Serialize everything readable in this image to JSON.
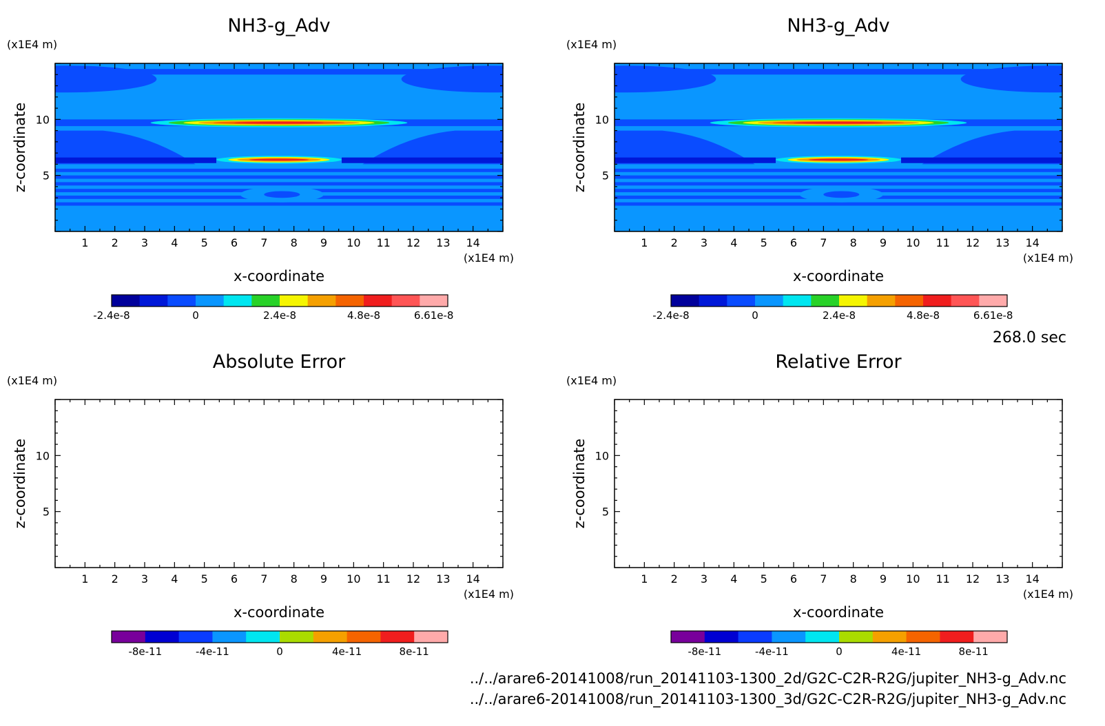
{
  "time_label": "268.0 sec",
  "file_paths": [
    "../../arare6-20141008/run_20141103-1300_2d/G2C-C2R-R2G/jupiter_NH3-g_Adv.nc",
    "../../arare6-20141008/run_20141103-1300_3d/G2C-C2R-R2G/jupiter_NH3-g_Adv.nc"
  ],
  "colors": {
    "background_field": "#0a96ff",
    "field_palette": [
      "#00009b",
      "#0018d8",
      "#0a4cff",
      "#0a96ff",
      "#00e6f0",
      "#28d228",
      "#f5f500",
      "#f5a000",
      "#f56400",
      "#f01e1e",
      "#ff5555",
      "#ffaaaa"
    ],
    "error_palette": [
      "#78009b",
      "#0000d2",
      "#0a3cff",
      "#0a96ff",
      "#00e6f0",
      "#aadc00",
      "#f5a000",
      "#f56400",
      "#f01e1e",
      "#ffaaaa"
    ]
  },
  "chart_data": [
    {
      "type": "heatmap",
      "title": "NH3-g_Adv",
      "xlabel": "x-coordinate",
      "ylabel": "z-coordinate",
      "x_unit": "(x1E4 m)",
      "y_unit": "(x1E4 m)",
      "xlim": [
        0,
        15
      ],
      "ylim": [
        0,
        15
      ],
      "x_ticks": [
        "1",
        "2",
        "3",
        "4",
        "5",
        "6",
        "7",
        "8",
        "9",
        "10",
        "11",
        "12",
        "13",
        "14"
      ],
      "y_ticks": [
        "5",
        "10"
      ],
      "features": [
        {
          "kind": "ellipse",
          "cx": 7.5,
          "cz": 9.7,
          "rx": 4.3,
          "rz": 0.4,
          "color": "#00e6f0"
        },
        {
          "kind": "ellipse",
          "cx": 7.5,
          "cz": 9.7,
          "rx": 3.7,
          "rz": 0.3,
          "color": "#28d228"
        },
        {
          "kind": "ellipse",
          "cx": 7.5,
          "cz": 9.7,
          "rx": 3.2,
          "rz": 0.24,
          "color": "#f5f500"
        },
        {
          "kind": "ellipse",
          "cx": 7.5,
          "cz": 9.7,
          "rx": 2.7,
          "rz": 0.18,
          "color": "#f5a000"
        },
        {
          "kind": "ellipse",
          "cx": 7.5,
          "cz": 9.7,
          "rx": 2.2,
          "rz": 0.13,
          "color": "#f56400"
        },
        {
          "kind": "ellipse",
          "cx": 7.5,
          "cz": 9.7,
          "rx": 1.5,
          "rz": 0.08,
          "color": "#f01e1e"
        },
        {
          "kind": "ellipse",
          "cx": 7.5,
          "cz": 6.4,
          "rx": 2.1,
          "rz": 0.35,
          "color": "#00e6f0"
        },
        {
          "kind": "ellipse",
          "cx": 7.5,
          "cz": 6.4,
          "rx": 1.7,
          "rz": 0.25,
          "color": "#f5f500"
        },
        {
          "kind": "ellipse",
          "cx": 7.5,
          "cz": 6.4,
          "rx": 1.4,
          "rz": 0.17,
          "color": "#f5a000"
        },
        {
          "kind": "ellipse",
          "cx": 7.5,
          "cz": 6.4,
          "rx": 1.0,
          "rz": 0.09,
          "color": "#f01e1e"
        }
      ],
      "colorbar": {
        "colors": [
          "#00009b",
          "#0018d8",
          "#0a4cff",
          "#0a96ff",
          "#00e6f0",
          "#28d228",
          "#f5f500",
          "#f5a000",
          "#f56400",
          "#f01e1e",
          "#ff5555",
          "#ffaaaa"
        ],
        "tick_labels": [
          "-2.4e-8",
          "0",
          "2.4e-8",
          "4.8e-8",
          "6.61e-8"
        ],
        "tick_positions": [
          0,
          3,
          6,
          9,
          11.5
        ]
      }
    },
    {
      "type": "heatmap",
      "title": "NH3-g_Adv",
      "xlabel": "x-coordinate",
      "ylabel": "z-coordinate",
      "x_unit": "(x1E4 m)",
      "y_unit": "(x1E4 m)",
      "xlim": [
        0,
        15
      ],
      "ylim": [
        0,
        15
      ],
      "x_ticks": [
        "1",
        "2",
        "3",
        "4",
        "5",
        "6",
        "7",
        "8",
        "9",
        "10",
        "11",
        "12",
        "13",
        "14"
      ],
      "y_ticks": [
        "5",
        "10"
      ],
      "features": [
        {
          "kind": "ellipse",
          "cx": 7.5,
          "cz": 9.7,
          "rx": 4.3,
          "rz": 0.4,
          "color": "#00e6f0"
        },
        {
          "kind": "ellipse",
          "cx": 7.5,
          "cz": 9.7,
          "rx": 3.7,
          "rz": 0.3,
          "color": "#28d228"
        },
        {
          "kind": "ellipse",
          "cx": 7.5,
          "cz": 9.7,
          "rx": 3.2,
          "rz": 0.24,
          "color": "#f5f500"
        },
        {
          "kind": "ellipse",
          "cx": 7.5,
          "cz": 9.7,
          "rx": 2.7,
          "rz": 0.18,
          "color": "#f5a000"
        },
        {
          "kind": "ellipse",
          "cx": 7.5,
          "cz": 9.7,
          "rx": 2.2,
          "rz": 0.13,
          "color": "#f56400"
        },
        {
          "kind": "ellipse",
          "cx": 7.5,
          "cz": 9.7,
          "rx": 1.5,
          "rz": 0.08,
          "color": "#f01e1e"
        },
        {
          "kind": "ellipse",
          "cx": 7.5,
          "cz": 6.4,
          "rx": 2.1,
          "rz": 0.35,
          "color": "#00e6f0"
        },
        {
          "kind": "ellipse",
          "cx": 7.5,
          "cz": 6.4,
          "rx": 1.7,
          "rz": 0.25,
          "color": "#f5f500"
        },
        {
          "kind": "ellipse",
          "cx": 7.5,
          "cz": 6.4,
          "rx": 1.4,
          "rz": 0.17,
          "color": "#f5a000"
        },
        {
          "kind": "ellipse",
          "cx": 7.5,
          "cz": 6.4,
          "rx": 1.0,
          "rz": 0.09,
          "color": "#f01e1e"
        }
      ],
      "colorbar": {
        "colors": [
          "#00009b",
          "#0018d8",
          "#0a4cff",
          "#0a96ff",
          "#00e6f0",
          "#28d228",
          "#f5f500",
          "#f5a000",
          "#f56400",
          "#f01e1e",
          "#ff5555",
          "#ffaaaa"
        ],
        "tick_labels": [
          "-2.4e-8",
          "0",
          "2.4e-8",
          "4.8e-8",
          "6.61e-8"
        ],
        "tick_positions": [
          0,
          3,
          6,
          9,
          11.5
        ]
      }
    },
    {
      "type": "heatmap",
      "title": "Absolute Error",
      "xlabel": "x-coordinate",
      "ylabel": "z-coordinate",
      "x_unit": "(x1E4 m)",
      "y_unit": "(x1E4 m)",
      "xlim": [
        0,
        15
      ],
      "ylim": [
        0,
        15
      ],
      "x_ticks": [
        "1",
        "2",
        "3",
        "4",
        "5",
        "6",
        "7",
        "8",
        "9",
        "10",
        "11",
        "12",
        "13",
        "14"
      ],
      "y_ticks": [
        "5",
        "10"
      ],
      "features": [],
      "colorbar": {
        "colors": [
          "#78009b",
          "#0000d2",
          "#0a3cff",
          "#0a96ff",
          "#00e6f0",
          "#aadc00",
          "#f5a000",
          "#f56400",
          "#f01e1e",
          "#ffaaaa"
        ],
        "tick_labels": [
          "-8e-11",
          "-4e-11",
          "0",
          "4e-11",
          "8e-11"
        ],
        "tick_positions": [
          1,
          3,
          5,
          7,
          9
        ]
      }
    },
    {
      "type": "heatmap",
      "title": "Relative Error",
      "xlabel": "x-coordinate",
      "ylabel": "z-coordinate",
      "x_unit": "(x1E4 m)",
      "y_unit": "(x1E4 m)",
      "xlim": [
        0,
        15
      ],
      "ylim": [
        0,
        15
      ],
      "x_ticks": [
        "1",
        "2",
        "3",
        "4",
        "5",
        "6",
        "7",
        "8",
        "9",
        "10",
        "11",
        "12",
        "13",
        "14"
      ],
      "y_ticks": [
        "5",
        "10"
      ],
      "features": [],
      "colorbar": {
        "colors": [
          "#78009b",
          "#0000d2",
          "#0a3cff",
          "#0a96ff",
          "#00e6f0",
          "#aadc00",
          "#f5a000",
          "#f56400",
          "#f01e1e",
          "#ffaaaa"
        ],
        "tick_labels": [
          "-8e-11",
          "-4e-11",
          "0",
          "4e-11",
          "8e-11"
        ],
        "tick_positions": [
          1,
          3,
          5,
          7,
          9
        ]
      }
    }
  ]
}
